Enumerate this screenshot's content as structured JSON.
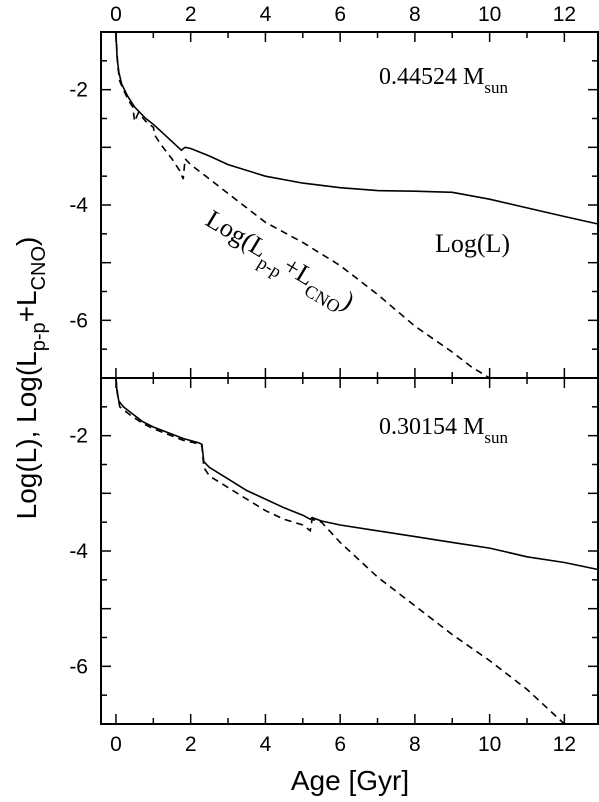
{
  "chart_data": [
    {
      "type": "line",
      "panel": "top",
      "mass_label": {
        "value": "0.44524 M",
        "sub": "sun"
      },
      "xlim": [
        -0.4,
        12.9
      ],
      "ylim": [
        -7.0,
        -1.0
      ],
      "x_ticks": [
        0,
        2,
        4,
        6,
        8,
        10,
        12
      ],
      "y_ticks": [
        -2,
        -4,
        -6
      ],
      "annotations": {
        "logL": "Log(L)",
        "pp_cno": {
          "a": "Log(L",
          "sub1": "p-p",
          "b": "+L",
          "sub2": "CNO",
          "c": ")"
        }
      },
      "series": [
        {
          "style": "solid",
          "x": [
            0.0,
            0.03,
            0.08,
            0.15,
            0.3,
            0.5,
            0.8,
            1.0,
            1.2,
            1.5,
            1.75,
            1.85,
            2.0,
            2.5,
            3.0,
            4.0,
            5.0,
            6.0,
            7.0,
            8.0,
            9.0,
            10.0,
            11.0,
            12.0,
            12.9
          ],
          "y": [
            -1.0,
            -1.45,
            -1.7,
            -1.9,
            -2.1,
            -2.3,
            -2.5,
            -2.6,
            -2.72,
            -2.9,
            -3.05,
            -3.0,
            -3.02,
            -3.15,
            -3.3,
            -3.5,
            -3.62,
            -3.7,
            -3.75,
            -3.76,
            -3.78,
            -3.9,
            -4.05,
            -4.2,
            -4.33
          ]
        },
        {
          "style": "dashed",
          "x": [
            0.0,
            0.05,
            0.1,
            0.2,
            0.35,
            0.45,
            0.5,
            0.6,
            0.8,
            1.0,
            1.05,
            1.2,
            1.5,
            1.7,
            1.8,
            1.85,
            2.0,
            2.5,
            3.0,
            4.0,
            5.0,
            6.0,
            7.0,
            8.0,
            9.0,
            9.5,
            10.0
          ],
          "y": [
            -1.0,
            -1.6,
            -1.85,
            -2.0,
            -2.2,
            -2.3,
            -2.55,
            -2.4,
            -2.55,
            -2.65,
            -2.8,
            -2.95,
            -3.2,
            -3.4,
            -3.55,
            -3.2,
            -3.3,
            -3.55,
            -3.8,
            -4.3,
            -4.65,
            -5.05,
            -5.55,
            -6.1,
            -6.55,
            -6.8,
            -7.0
          ]
        }
      ]
    },
    {
      "type": "line",
      "panel": "bottom",
      "mass_label": {
        "value": "0.30154 M",
        "sub": "sun"
      },
      "xlim": [
        -0.4,
        12.9
      ],
      "ylim": [
        -7.0,
        -1.0
      ],
      "x_ticks": [
        0,
        2,
        4,
        6,
        8,
        10,
        12
      ],
      "y_ticks": [
        -2,
        -4,
        -6
      ],
      "xlabel": "Age [Gyr]",
      "series": [
        {
          "style": "solid",
          "x": [
            0.0,
            0.03,
            0.08,
            0.2,
            0.4,
            0.7,
            1.0,
            1.4,
            1.8,
            2.2,
            2.3,
            2.35,
            2.5,
            3.0,
            3.5,
            4.0,
            4.5,
            5.0,
            5.2,
            5.25,
            5.5,
            6.0,
            7.0,
            8.0,
            9.0,
            10.0,
            11.0,
            12.0,
            12.9
          ],
          "y": [
            -1.0,
            -1.25,
            -1.4,
            -1.5,
            -1.6,
            -1.75,
            -1.85,
            -1.95,
            -2.05,
            -2.12,
            -2.15,
            -2.45,
            -2.55,
            -2.75,
            -2.95,
            -3.1,
            -3.25,
            -3.38,
            -3.45,
            -3.42,
            -3.48,
            -3.55,
            -3.65,
            -3.75,
            -3.85,
            -3.95,
            -4.1,
            -4.2,
            -4.32
          ]
        },
        {
          "style": "dashed",
          "x": [
            0.0,
            0.05,
            0.1,
            0.2,
            0.4,
            0.7,
            1.0,
            1.4,
            1.8,
            2.2,
            2.3,
            2.35,
            2.5,
            3.0,
            3.5,
            4.0,
            4.5,
            5.0,
            5.2,
            5.25,
            5.5,
            6.0,
            7.0,
            8.0,
            9.0,
            10.0,
            11.0,
            12.0
          ],
          "y": [
            -1.0,
            -1.3,
            -1.5,
            -1.55,
            -1.65,
            -1.78,
            -1.88,
            -1.98,
            -2.08,
            -2.14,
            -2.18,
            -2.55,
            -2.7,
            -2.9,
            -3.1,
            -3.3,
            -3.45,
            -3.55,
            -3.65,
            -3.45,
            -3.5,
            -3.85,
            -4.45,
            -4.95,
            -5.45,
            -5.9,
            -6.4,
            -7.0
          ]
        }
      ]
    }
  ],
  "axes": {
    "ylabel": {
      "a": "Log(L), Log(L",
      "sub1": "p-p",
      "b": "+L",
      "sub2": "CNO",
      "c": ")"
    },
    "xlabel": "Age [Gyr]"
  }
}
